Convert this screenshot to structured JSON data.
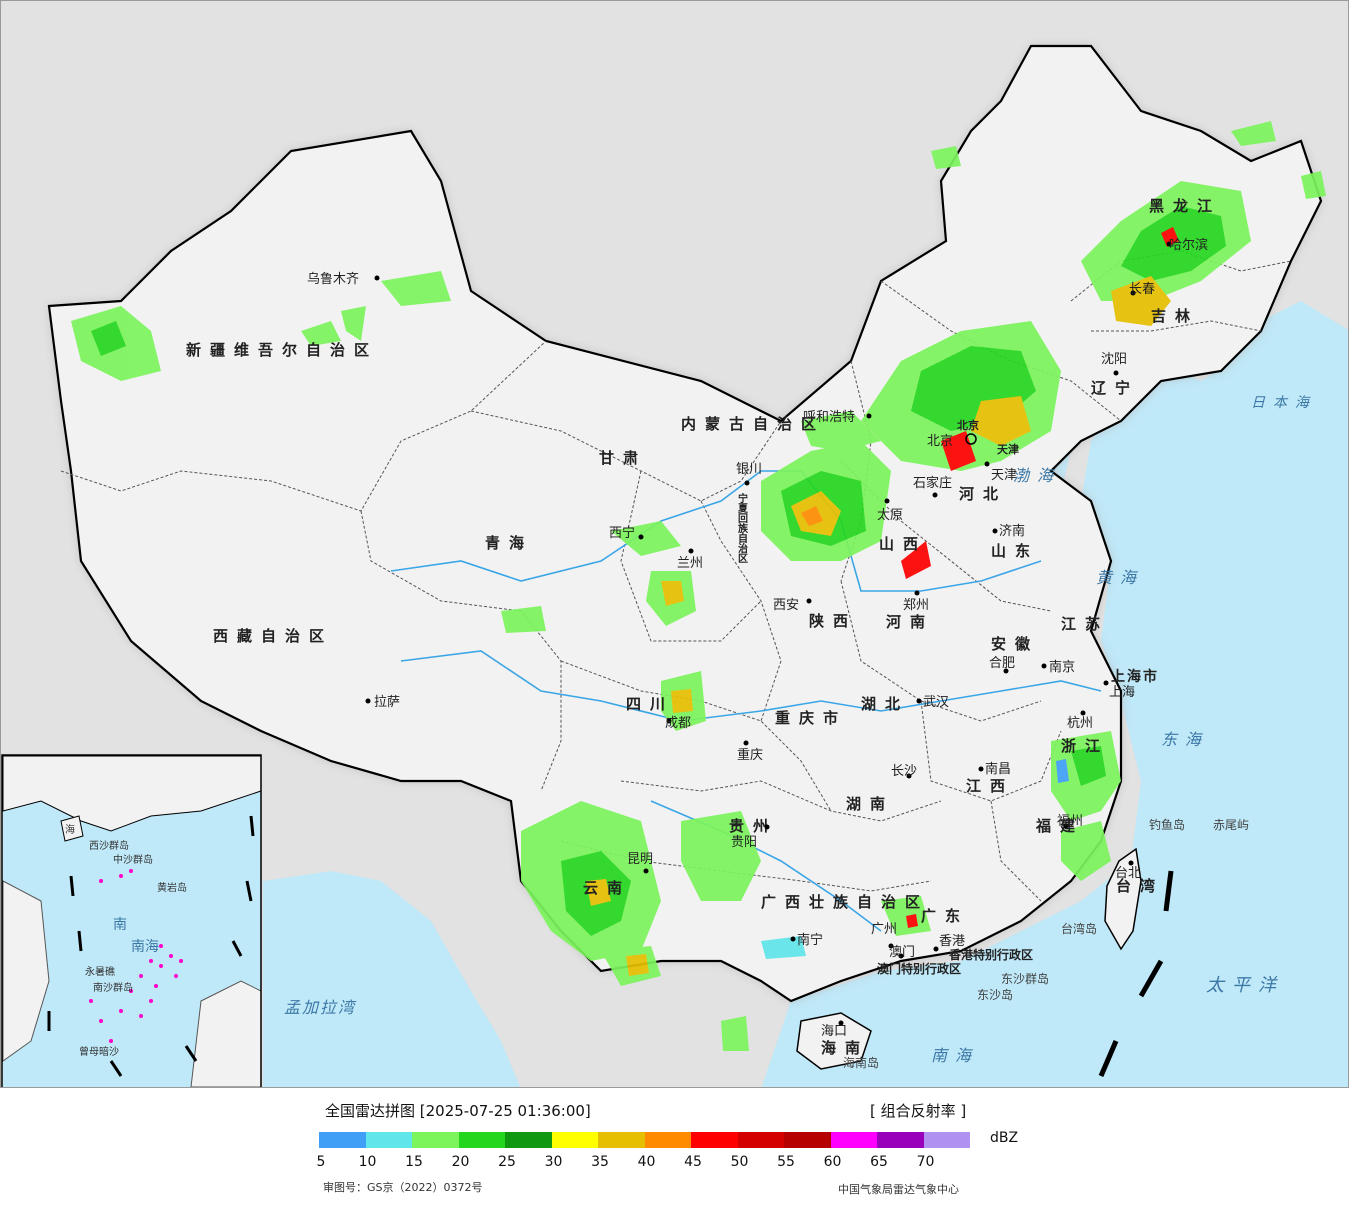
{
  "map": {
    "provinces": [
      "新疆维吾尔自治区",
      "西藏自治区",
      "青海",
      "甘肃",
      "内蒙古自治区",
      "黑龙江",
      "吉林",
      "辽宁",
      "河北",
      "山西",
      "陕西",
      "四川",
      "重庆市",
      "贵州",
      "云南",
      "广西壮族自治区",
      "广东",
      "海南",
      "湖南",
      "湖北",
      "河南",
      "山东",
      "江苏",
      "安徽",
      "浙江",
      "江西",
      "福建",
      "台湾",
      "上海市",
      "宁夏回族自治区",
      "天津",
      "香港特别行政区",
      "澳门特别行政区",
      "北京"
    ],
    "cities": [
      "乌鲁木齐",
      "拉萨",
      "西宁",
      "兰州",
      "银川",
      "呼和浩特",
      "北京",
      "天津",
      "石家庄",
      "太原",
      "济南",
      "郑州",
      "西安",
      "成都",
      "重庆",
      "贵阳",
      "昆明",
      "南宁",
      "广州",
      "长沙",
      "武汉",
      "南昌",
      "合肥",
      "南京",
      "上海",
      "杭州",
      "福州",
      "台北",
      "沈阳",
      "长春",
      "哈尔滨",
      "海口",
      "香港",
      "澳门"
    ],
    "seas": [
      "渤海",
      "黄海",
      "东海",
      "南海",
      "日本海",
      "太平洋",
      "孟加拉湾"
    ],
    "islands": [
      "钓鱼岛",
      "赤尾屿",
      "东沙群岛",
      "东沙岛",
      "台湾岛",
      "海南岛"
    ],
    "inset_labels": [
      "海",
      "南",
      "南海",
      "中沙群岛",
      "黄岩岛",
      "西沙群岛",
      "南沙群岛",
      "曾母暗沙",
      "永暑礁"
    ],
    "colors": {
      "sea": "#bfe8f8",
      "land": "#f1f1f1",
      "outside": "#e2e2e2",
      "river": "#3aa6e6",
      "inset_dash": "#ff00cc"
    }
  },
  "legend": {
    "title": "全国雷达拼图 [2025-07-25 01:36:00]",
    "product": "[ 组合反射率 ]",
    "unit": "dBZ",
    "ticks": [
      "5",
      "10",
      "15",
      "20",
      "25",
      "30",
      "35",
      "40",
      "45",
      "50",
      "55",
      "60",
      "65",
      "70"
    ],
    "colors": [
      "#3f9ff6",
      "#5fe6ea",
      "#7cf45c",
      "#25d61e",
      "#0f9810",
      "#ffff00",
      "#e6c000",
      "#ff8c00",
      "#ff0000",
      "#d40000",
      "#b60000",
      "#ff00ff",
      "#9900bb",
      "#b090f0"
    ],
    "review_number": "审图号：GS京（2022）0372号",
    "agency": "中国气象局雷达气象中心"
  }
}
